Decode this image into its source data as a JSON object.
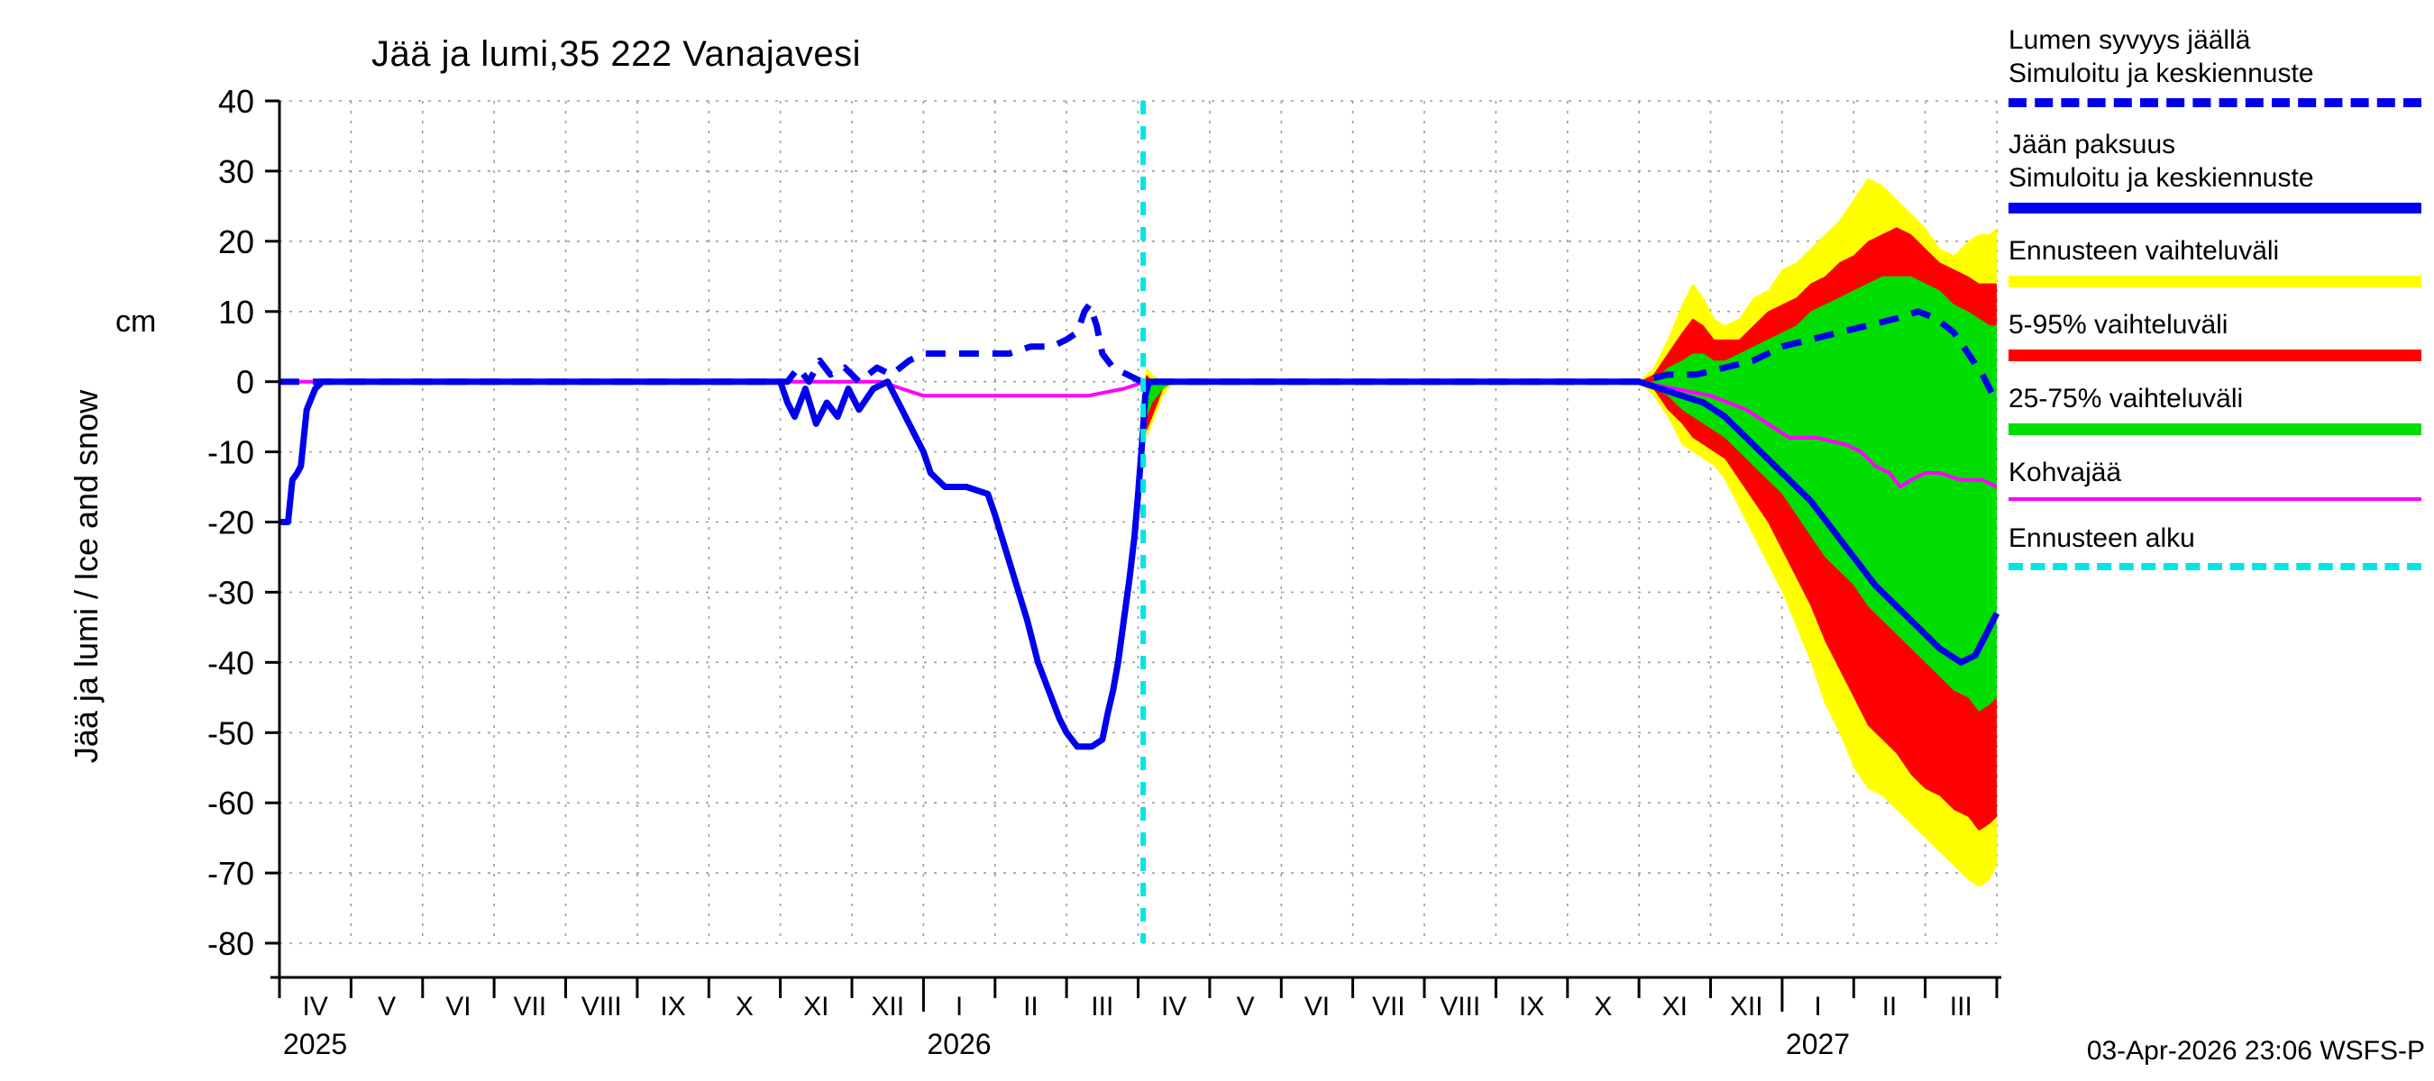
{
  "title": "Jää ja lumi,35 222 Vanajavesi",
  "footer": {
    "timestamp": "03-Apr-2026 23:06 WSFS-P"
  },
  "y_axis": {
    "label": "Jää ja lumi / Ice and snow",
    "unit": "cm",
    "ticks": [
      40,
      30,
      20,
      10,
      0,
      -10,
      -20,
      -30,
      -40,
      -50,
      -60,
      -70,
      -80
    ]
  },
  "x_axis": {
    "months": [
      "IV",
      "V",
      "VI",
      "VII",
      "VIII",
      "IX",
      "X",
      "XI",
      "XII",
      "I",
      "II",
      "III",
      "IV",
      "V",
      "VI",
      "VII",
      "VIII",
      "IX",
      "X",
      "XI",
      "XII",
      "I",
      "II",
      "III"
    ],
    "years": [
      {
        "label": "2025",
        "month_index": 0
      },
      {
        "label": "2026",
        "month_index": 9
      },
      {
        "label": "2027",
        "month_index": 21
      }
    ]
  },
  "colors": {
    "blue": "#0000ee",
    "yellow": "#ffff00",
    "red": "#ff0000",
    "green": "#00dd00",
    "magenta": "#ff00ff",
    "cyan": "#00e6e6",
    "grid": "#9c9c9c",
    "axis": "#000000"
  },
  "legend": {
    "items": [
      {
        "lines": [
          "Lumen syvyys jäällä",
          "Simuloitu ja keskiennuste"
        ],
        "color": "#0000ee",
        "style": "dashed",
        "thickness": 10
      },
      {
        "lines": [
          "Jään paksuus",
          "Simuloitu ja keskiennuste"
        ],
        "color": "#0000ee",
        "style": "solid",
        "thickness": 12
      },
      {
        "lines": [
          "Ennusteen vaihteluväli"
        ],
        "color": "#ffff00",
        "style": "solid",
        "thickness": 13
      },
      {
        "lines": [
          "5-95% vaihteluväli"
        ],
        "color": "#ff0000",
        "style": "solid",
        "thickness": 13
      },
      {
        "lines": [
          "25-75% vaihteluväli"
        ],
        "color": "#00dd00",
        "style": "solid",
        "thickness": 13
      },
      {
        "lines": [
          "Kohvajää"
        ],
        "color": "#ff00ff",
        "style": "solid",
        "thickness": 4
      },
      {
        "lines": [
          "Ennusteen alku"
        ],
        "color": "#00e6e6",
        "style": "dashed",
        "thickness": 8
      }
    ]
  },
  "chart_data": {
    "type": "line",
    "title": "Jää ja lumi,35 222 Vanajavesi",
    "ylabel": "Jää ja lumi / Ice and snow cm",
    "x_unit": "months since 2025-04-01",
    "x_range": [
      0,
      24
    ],
    "y_range": [
      -80,
      40
    ],
    "grid": true,
    "forecast_start_x": 12.07,
    "bands": [
      {
        "name": "Ennusteen vaihteluväli",
        "color": "#ffff00",
        "points": [
          [
            12.08,
            -2,
            0
          ],
          [
            12.12,
            -8,
            2
          ],
          [
            12.2,
            -6,
            1
          ],
          [
            12.35,
            -2,
            0
          ],
          [
            12.5,
            0,
            0
          ],
          [
            19.0,
            0,
            0
          ],
          [
            19.2,
            -2,
            2
          ],
          [
            19.4,
            -5,
            6
          ],
          [
            19.6,
            -9,
            11
          ],
          [
            19.75,
            -10,
            14
          ],
          [
            19.9,
            -11,
            12
          ],
          [
            20.05,
            -12,
            9
          ],
          [
            20.2,
            -14,
            8
          ],
          [
            20.4,
            -18,
            9
          ],
          [
            20.6,
            -22,
            12
          ],
          [
            20.8,
            -26,
            13
          ],
          [
            21.0,
            -30,
            16
          ],
          [
            21.2,
            -35,
            17
          ],
          [
            21.4,
            -40,
            19
          ],
          [
            21.6,
            -46,
            21
          ],
          [
            21.8,
            -50,
            23
          ],
          [
            22.0,
            -55,
            26
          ],
          [
            22.2,
            -58,
            29
          ],
          [
            22.4,
            -59,
            28
          ],
          [
            22.6,
            -61,
            26
          ],
          [
            22.8,
            -63,
            24
          ],
          [
            23.0,
            -65,
            22
          ],
          [
            23.2,
            -67,
            19
          ],
          [
            23.4,
            -69,
            18
          ],
          [
            23.6,
            -71,
            20
          ],
          [
            23.75,
            -72,
            21
          ],
          [
            23.9,
            -71,
            21
          ],
          [
            24,
            -69,
            22
          ]
        ]
      },
      {
        "name": "5-95% vaihteluväli",
        "color": "#ff0000",
        "points": [
          [
            12.08,
            -1,
            0
          ],
          [
            12.12,
            -7,
            1
          ],
          [
            12.2,
            -5,
            0
          ],
          [
            12.35,
            -1,
            0
          ],
          [
            12.5,
            0,
            0
          ],
          [
            19.0,
            0,
            0
          ],
          [
            19.2,
            -1,
            1
          ],
          [
            19.4,
            -4,
            4
          ],
          [
            19.6,
            -6,
            7
          ],
          [
            19.75,
            -8,
            9
          ],
          [
            19.9,
            -9,
            8
          ],
          [
            20.05,
            -10,
            6
          ],
          [
            20.2,
            -11,
            6
          ],
          [
            20.4,
            -14,
            6
          ],
          [
            20.6,
            -17,
            8
          ],
          [
            20.8,
            -20,
            10
          ],
          [
            21.0,
            -24,
            11
          ],
          [
            21.2,
            -28,
            12
          ],
          [
            21.4,
            -32,
            14
          ],
          [
            21.6,
            -37,
            15
          ],
          [
            21.8,
            -41,
            17
          ],
          [
            22.0,
            -45,
            18
          ],
          [
            22.2,
            -49,
            20
          ],
          [
            22.4,
            -51,
            21
          ],
          [
            22.6,
            -53,
            22
          ],
          [
            22.8,
            -56,
            21
          ],
          [
            23.0,
            -58,
            19
          ],
          [
            23.2,
            -59,
            17
          ],
          [
            23.4,
            -61,
            16
          ],
          [
            23.6,
            -62,
            15
          ],
          [
            23.75,
            -64,
            14
          ],
          [
            23.9,
            -63,
            14
          ],
          [
            24,
            -62,
            14
          ]
        ]
      },
      {
        "name": "25-75% vaihteluväli",
        "color": "#00dd00",
        "points": [
          [
            12.08,
            -1,
            0
          ],
          [
            12.12,
            -5,
            0
          ],
          [
            12.2,
            -3,
            0
          ],
          [
            12.35,
            -1,
            0
          ],
          [
            12.5,
            0,
            0
          ],
          [
            19.0,
            0,
            0
          ],
          [
            19.2,
            -1,
            0
          ],
          [
            19.4,
            -2,
            2
          ],
          [
            19.6,
            -4,
            3
          ],
          [
            19.75,
            -5,
            4
          ],
          [
            19.9,
            -6,
            4
          ],
          [
            20.05,
            -7,
            3
          ],
          [
            20.2,
            -8,
            3
          ],
          [
            20.4,
            -10,
            4
          ],
          [
            20.6,
            -12,
            5
          ],
          [
            20.8,
            -14,
            6
          ],
          [
            21.0,
            -16,
            7
          ],
          [
            21.2,
            -19,
            8
          ],
          [
            21.4,
            -22,
            10
          ],
          [
            21.6,
            -25,
            11
          ],
          [
            21.8,
            -27,
            12
          ],
          [
            22.0,
            -29,
            13
          ],
          [
            22.2,
            -32,
            14
          ],
          [
            22.4,
            -34,
            15
          ],
          [
            22.6,
            -36,
            15
          ],
          [
            22.8,
            -38,
            15
          ],
          [
            23.0,
            -40,
            14
          ],
          [
            23.2,
            -42,
            13
          ],
          [
            23.4,
            -44,
            11
          ],
          [
            23.6,
            -45,
            10
          ],
          [
            23.75,
            -47,
            9
          ],
          [
            23.9,
            -46,
            8
          ],
          [
            24,
            -45,
            8
          ]
        ]
      }
    ],
    "series": [
      {
        "name": "Kohvajää",
        "color": "#ff00ff",
        "style": "solid",
        "width": 4,
        "points": [
          [
            0,
            0
          ],
          [
            8.4,
            0
          ],
          [
            8.7,
            -1
          ],
          [
            9.0,
            -2
          ],
          [
            9.5,
            -2
          ],
          [
            10.5,
            -2
          ],
          [
            11.3,
            -2
          ],
          [
            11.8,
            -1
          ],
          [
            12.1,
            0
          ],
          [
            19.0,
            0
          ],
          [
            19.5,
            -1
          ],
          [
            20.0,
            -2
          ],
          [
            20.5,
            -4
          ],
          [
            20.8,
            -6
          ],
          [
            21.1,
            -8
          ],
          [
            21.5,
            -8
          ],
          [
            21.9,
            -9
          ],
          [
            22.1,
            -10
          ],
          [
            22.3,
            -12
          ],
          [
            22.5,
            -13
          ],
          [
            22.65,
            -15
          ],
          [
            22.8,
            -14
          ],
          [
            23.0,
            -13
          ],
          [
            23.2,
            -13
          ],
          [
            23.5,
            -14
          ],
          [
            23.8,
            -14
          ],
          [
            24,
            -15
          ]
        ]
      },
      {
        "name": "Jään paksuus, simuloitu ja keskiennuste",
        "color": "#0000ee",
        "style": "solid",
        "width": 7,
        "points": [
          [
            0,
            -20
          ],
          [
            0.12,
            -20
          ],
          [
            0.18,
            -14
          ],
          [
            0.25,
            -13
          ],
          [
            0.3,
            -12
          ],
          [
            0.38,
            -4
          ],
          [
            0.5,
            -1
          ],
          [
            0.6,
            0
          ],
          [
            7.0,
            0
          ],
          [
            7.1,
            -3
          ],
          [
            7.2,
            -5
          ],
          [
            7.35,
            -1
          ],
          [
            7.5,
            -6
          ],
          [
            7.65,
            -3
          ],
          [
            7.8,
            -5
          ],
          [
            7.95,
            -1
          ],
          [
            8.1,
            -4
          ],
          [
            8.3,
            -1
          ],
          [
            8.5,
            0
          ],
          [
            8.7,
            -4
          ],
          [
            8.9,
            -8
          ],
          [
            9.0,
            -10
          ],
          [
            9.1,
            -13
          ],
          [
            9.3,
            -15
          ],
          [
            9.6,
            -15
          ],
          [
            9.9,
            -16
          ],
          [
            10.0,
            -19
          ],
          [
            10.15,
            -24
          ],
          [
            10.3,
            -29
          ],
          [
            10.45,
            -34
          ],
          [
            10.6,
            -40
          ],
          [
            10.75,
            -44
          ],
          [
            10.9,
            -48
          ],
          [
            11.0,
            -50
          ],
          [
            11.15,
            -52
          ],
          [
            11.35,
            -52
          ],
          [
            11.5,
            -51
          ],
          [
            11.58,
            -47
          ],
          [
            11.65,
            -44
          ],
          [
            11.72,
            -40
          ],
          [
            11.8,
            -34
          ],
          [
            11.88,
            -28
          ],
          [
            11.95,
            -22
          ],
          [
            12.0,
            -16
          ],
          [
            12.06,
            -8
          ],
          [
            12.1,
            -2
          ],
          [
            12.15,
            0
          ],
          [
            19.0,
            0
          ],
          [
            19.3,
            -1
          ],
          [
            19.6,
            -2
          ],
          [
            19.9,
            -3
          ],
          [
            20.2,
            -5
          ],
          [
            20.5,
            -8
          ],
          [
            20.8,
            -11
          ],
          [
            21.1,
            -14
          ],
          [
            21.4,
            -17
          ],
          [
            21.7,
            -21
          ],
          [
            22.0,
            -25
          ],
          [
            22.3,
            -29
          ],
          [
            22.6,
            -32
          ],
          [
            22.9,
            -35
          ],
          [
            23.2,
            -38
          ],
          [
            23.5,
            -40
          ],
          [
            23.7,
            -39
          ],
          [
            23.85,
            -36
          ],
          [
            24,
            -33
          ]
        ]
      },
      {
        "name": "Lumen syvyys jäällä, simuloitu ja keskiennuste",
        "color": "#0000ee",
        "style": "dashed",
        "width": 7,
        "points": [
          [
            0,
            0
          ],
          [
            7.1,
            0
          ],
          [
            7.25,
            2
          ],
          [
            7.4,
            0
          ],
          [
            7.55,
            3
          ],
          [
            7.7,
            1
          ],
          [
            7.9,
            2
          ],
          [
            8.1,
            0
          ],
          [
            8.35,
            2
          ],
          [
            8.55,
            1
          ],
          [
            8.8,
            3
          ],
          [
            9.0,
            4
          ],
          [
            9.4,
            4
          ],
          [
            9.8,
            4
          ],
          [
            10.2,
            4
          ],
          [
            10.5,
            5
          ],
          [
            10.8,
            5
          ],
          [
            11.0,
            6
          ],
          [
            11.15,
            7
          ],
          [
            11.25,
            10
          ],
          [
            11.32,
            11
          ],
          [
            11.42,
            8
          ],
          [
            11.5,
            4
          ],
          [
            11.65,
            2
          ],
          [
            11.85,
            1
          ],
          [
            12.05,
            0
          ],
          [
            19.0,
            0
          ],
          [
            19.4,
            1
          ],
          [
            19.8,
            1
          ],
          [
            20.2,
            2
          ],
          [
            20.6,
            3
          ],
          [
            21.0,
            5
          ],
          [
            21.4,
            6
          ],
          [
            21.8,
            7
          ],
          [
            22.2,
            8
          ],
          [
            22.6,
            9
          ],
          [
            22.9,
            10
          ],
          [
            23.15,
            9
          ],
          [
            23.4,
            7
          ],
          [
            23.6,
            4
          ],
          [
            23.8,
            1
          ],
          [
            24,
            -3
          ]
        ]
      }
    ]
  }
}
